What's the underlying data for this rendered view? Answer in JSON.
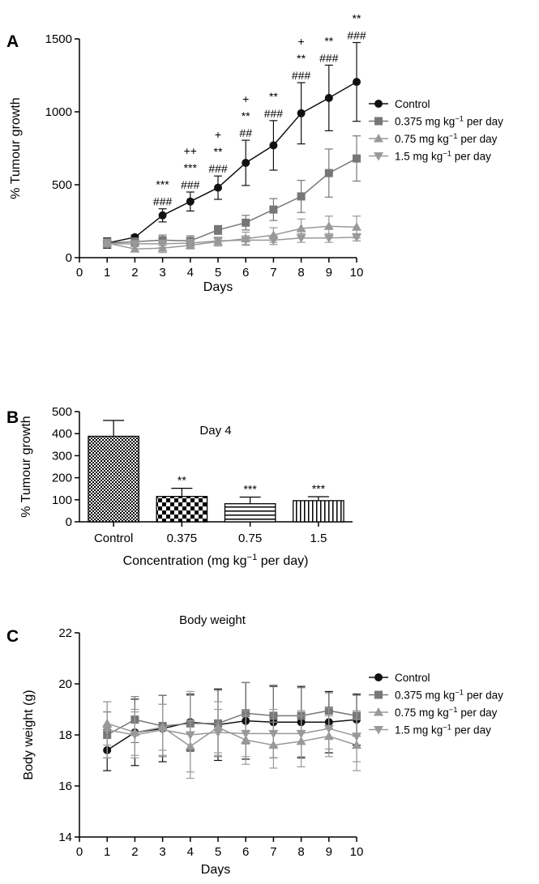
{
  "chart_data": [
    {
      "panel": "A",
      "type": "line",
      "title": "",
      "xlabel": "Days",
      "ylabel": "% Tumour growth",
      "xlim": [
        0,
        10
      ],
      "ylim": [
        0,
        1500
      ],
      "xticks": [
        0,
        1,
        2,
        3,
        4,
        5,
        6,
        7,
        8,
        9,
        10
      ],
      "yticks": [
        0,
        500,
        1000,
        1500
      ],
      "legend_position": "right",
      "x": [
        1,
        2,
        3,
        4,
        5,
        6,
        7,
        8,
        9,
        10
      ],
      "series": [
        {
          "name": "Control",
          "marker": "circle",
          "color": "#111111",
          "values": [
            100,
            140,
            290,
            385,
            480,
            650,
            770,
            990,
            1095,
            1205
          ],
          "err": [
            35,
            15,
            45,
            65,
            80,
            155,
            170,
            210,
            225,
            270
          ]
        },
        {
          "name": "0.375 mg kg⁻¹ per day",
          "marker": "square",
          "color": "#777777",
          "values": [
            100,
            110,
            120,
            115,
            190,
            240,
            330,
            420,
            580,
            680
          ],
          "err": [
            30,
            25,
            35,
            35,
            30,
            50,
            75,
            110,
            165,
            155
          ]
        },
        {
          "name": "0.75 mg kg⁻¹ per day",
          "marker": "triangle-up",
          "color": "#999999",
          "values": [
            100,
            60,
            65,
            85,
            110,
            130,
            155,
            200,
            215,
            210
          ],
          "err": [
            25,
            20,
            30,
            25,
            30,
            45,
            50,
            65,
            70,
            75
          ]
        },
        {
          "name": "1.5 mg kg⁻¹ per day",
          "marker": "triangle-down",
          "color": "#999999",
          "values": [
            95,
            95,
            95,
            100,
            115,
            120,
            120,
            135,
            135,
            140
          ],
          "err": [
            20,
            20,
            25,
            25,
            25,
            30,
            30,
            30,
            30,
            25
          ]
        }
      ],
      "annotations": [
        {
          "x": 3,
          "lines": [
            "***",
            "###"
          ]
        },
        {
          "x": 4,
          "lines": [
            "++",
            "***",
            "###"
          ]
        },
        {
          "x": 5,
          "lines": [
            "+",
            "**",
            "###"
          ]
        },
        {
          "x": 6,
          "lines": [
            "+",
            "**",
            "##"
          ]
        },
        {
          "x": 7,
          "lines": [
            "**",
            "###"
          ]
        },
        {
          "x": 8,
          "lines": [
            "+",
            "**",
            "###"
          ]
        },
        {
          "x": 9,
          "lines": [
            "**",
            "###"
          ]
        },
        {
          "x": 10,
          "lines": [
            "**",
            "###"
          ]
        }
      ]
    },
    {
      "panel": "B",
      "type": "bar",
      "title": "Day 4",
      "xlabel": "Concentration (mg kg⁻¹ per day)",
      "ylabel": "% Tumour growth",
      "ylim": [
        0,
        500
      ],
      "yticks": [
        0,
        100,
        200,
        300,
        400,
        500
      ],
      "categories": [
        "Control",
        "0.375",
        "0.75",
        "1.5"
      ],
      "values": [
        388,
        115,
        82,
        96
      ],
      "err": [
        72,
        37,
        30,
        18
      ],
      "patterns": [
        "fine-grid",
        "checker",
        "horizontal-lines",
        "vertical-lines"
      ],
      "sig": [
        "",
        "**",
        "***",
        "***"
      ]
    },
    {
      "panel": "C",
      "type": "line",
      "title": "Body weight",
      "xlabel": "Days",
      "ylabel": "Body weight (g)",
      "xlim": [
        0,
        10
      ],
      "ylim": [
        14,
        22
      ],
      "xticks": [
        0,
        1,
        2,
        3,
        4,
        5,
        6,
        7,
        8,
        9,
        10
      ],
      "yticks": [
        14,
        16,
        18,
        20,
        22
      ],
      "legend_position": "right",
      "x": [
        1,
        2,
        3,
        4,
        5,
        6,
        7,
        8,
        9,
        10
      ],
      "series": [
        {
          "name": "Control",
          "marker": "circle",
          "color": "#111111",
          "values": [
            17.4,
            18.1,
            18.25,
            18.5,
            18.4,
            18.55,
            18.5,
            18.5,
            18.5,
            18.6
          ],
          "err": [
            0.8,
            1.3,
            1.3,
            1.1,
            1.4,
            1.5,
            1.4,
            1.4,
            1.2,
            1.0
          ]
        },
        {
          "name": "0.375 mg kg⁻¹ per day",
          "marker": "square",
          "color": "#777777",
          "values": [
            18.0,
            18.6,
            18.35,
            18.45,
            18.45,
            18.85,
            18.75,
            18.75,
            18.95,
            18.75
          ],
          "err": [
            0.9,
            0.9,
            1.2,
            1.1,
            1.3,
            1.2,
            1.2,
            1.1,
            0.7,
            0.8
          ]
        },
        {
          "name": "0.75 mg kg⁻¹ per day",
          "marker": "triangle-up",
          "color": "#999999",
          "values": [
            18.45,
            18.1,
            18.3,
            17.55,
            18.3,
            17.8,
            17.6,
            17.75,
            17.95,
            17.6
          ],
          "err": [
            0.85,
            0.9,
            0.9,
            1.0,
            1.0,
            0.95,
            0.9,
            1.0,
            0.8,
            1.0
          ]
        },
        {
          "name": "1.5 mg kg⁻¹ per day",
          "marker": "triangle-down",
          "color": "#999999",
          "values": [
            18.2,
            18.0,
            18.2,
            18.0,
            18.1,
            18.05,
            18.05,
            18.05,
            18.25,
            17.95
          ],
          "err": [
            1.1,
            0.9,
            1.0,
            1.7,
            0.9,
            0.9,
            0.95,
            0.9,
            0.8,
            1.0
          ]
        }
      ]
    }
  ]
}
